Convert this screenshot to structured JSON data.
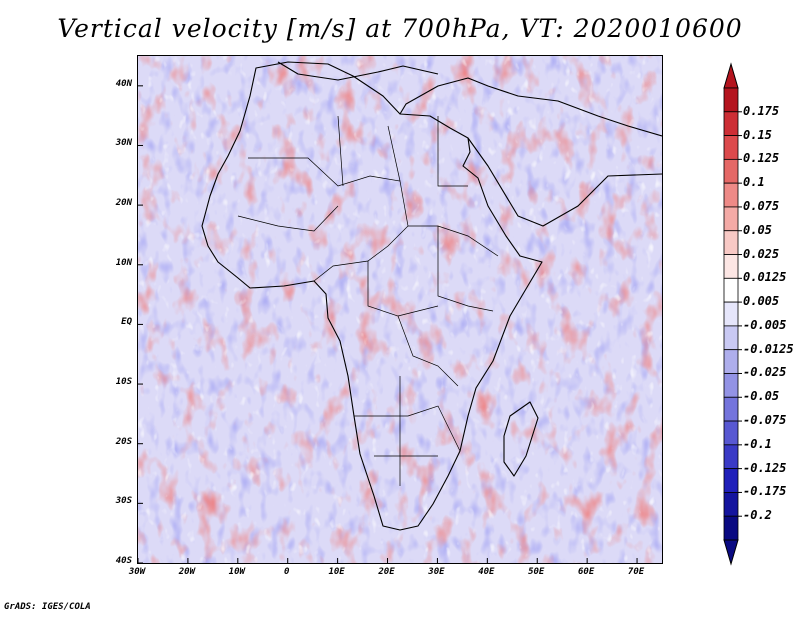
{
  "title": "Vertical velocity [m/s] at 700hPa, VT: 2020010600",
  "footer": "GrADS: IGES/COLA",
  "map": {
    "projection": "latlon",
    "lon_range": [
      -30,
      75
    ],
    "lat_range": [
      -40,
      45
    ],
    "lat_ticks": [
      {
        "value": 40,
        "label": "40N"
      },
      {
        "value": 30,
        "label": "30N"
      },
      {
        "value": 20,
        "label": "20N"
      },
      {
        "value": 10,
        "label": "10N"
      },
      {
        "value": 0,
        "label": "EQ"
      },
      {
        "value": -10,
        "label": "10S"
      },
      {
        "value": -20,
        "label": "20S"
      },
      {
        "value": -30,
        "label": "30S"
      },
      {
        "value": -40,
        "label": "40S"
      }
    ],
    "lon_ticks": [
      {
        "value": -30,
        "label": "30W"
      },
      {
        "value": -20,
        "label": "20W"
      },
      {
        "value": -10,
        "label": "10W"
      },
      {
        "value": 0,
        "label": "0"
      },
      {
        "value": 10,
        "label": "10E"
      },
      {
        "value": 20,
        "label": "20E"
      },
      {
        "value": 30,
        "label": "30E"
      },
      {
        "value": 40,
        "label": "40E"
      },
      {
        "value": 50,
        "label": "50E"
      },
      {
        "value": 60,
        "label": "60E"
      },
      {
        "value": 70,
        "label": "70E"
      }
    ]
  },
  "colorbar": {
    "labels": [
      "0.175",
      "0.15",
      "0.125",
      "0.1",
      "0.075",
      "0.05",
      "0.025",
      "0.0125",
      "0.005",
      "-0.005",
      "-0.0125",
      "-0.025",
      "-0.05",
      "-0.075",
      "-0.1",
      "-0.125",
      "-0.175",
      "-0.2"
    ],
    "colors": [
      "#b4141e",
      "#cd2e35",
      "#dc4a4c",
      "#e56866",
      "#ee8a87",
      "#f4aaa6",
      "#f8c9c5",
      "#fce6e4",
      "#ffffff",
      "#e6e6fb",
      "#c9c9f3",
      "#aeaeec",
      "#9393e5",
      "#7474dc",
      "#5858d2",
      "#3a3ac6",
      "#2020ba",
      "#14149e",
      "#0a0a82"
    ]
  }
}
